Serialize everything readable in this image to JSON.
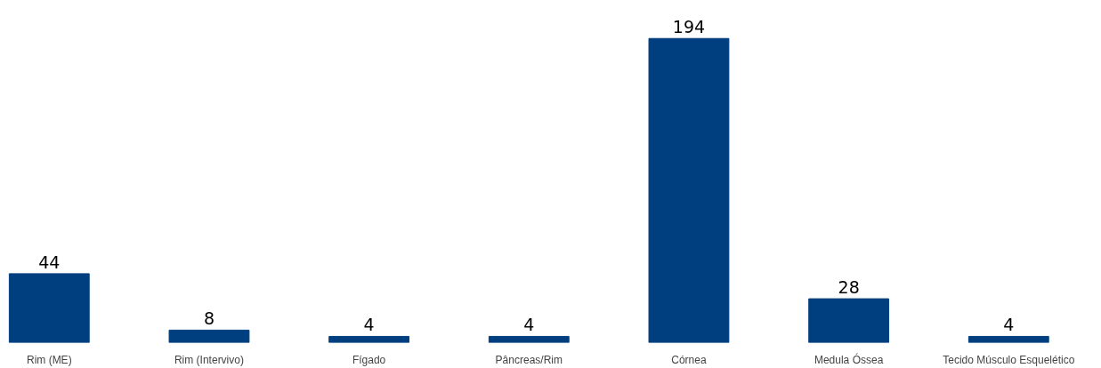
{
  "chart_data": {
    "type": "bar",
    "categories": [
      "Rim (ME)",
      "Rim (Intervivo)",
      "Fígado",
      "Pâncreas/Rim",
      "Córnea",
      "Medula Óssea",
      "Tecido Músculo Esquelético"
    ],
    "values": [
      44,
      8,
      4,
      4,
      194,
      28,
      4
    ],
    "color": "#003f7f",
    "data_labels": true
  }
}
